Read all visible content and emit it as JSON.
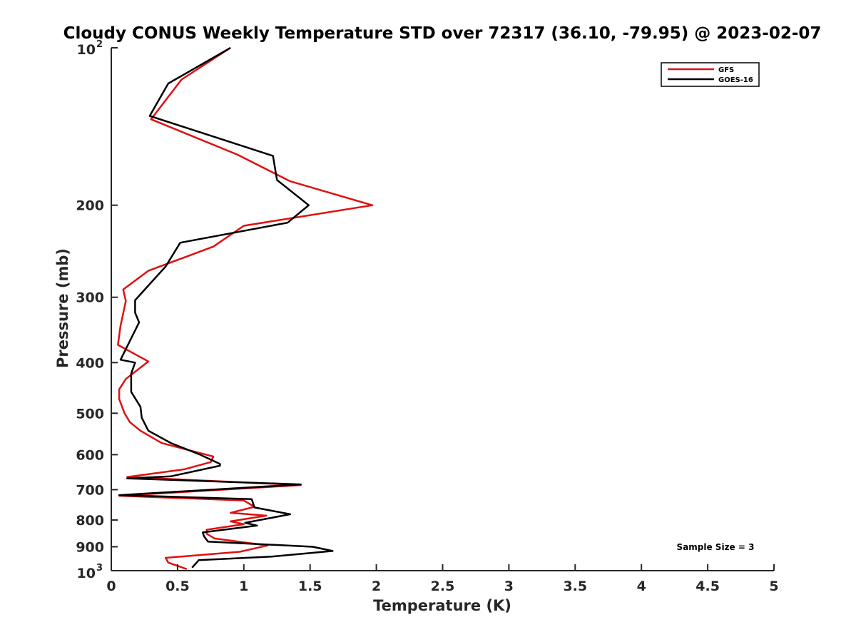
{
  "chart_data": {
    "type": "line",
    "title": "Cloudy CONUS Weekly Temperature STD over 72317 (36.10, -79.95) @ 2023-02-07",
    "xlabel": "Temperature (K)",
    "ylabel": "Pressure (mb)",
    "xlim": [
      0,
      5
    ],
    "ylim": [
      1000,
      100
    ],
    "y_scale": "log",
    "y_reversed": true,
    "grid": false,
    "legend_position": "top-right",
    "x_ticks": [
      "0",
      "0.5",
      "1",
      "1.5",
      "2",
      "2.5",
      "3",
      "3.5",
      "4",
      "4.5",
      "5"
    ],
    "y_ticks": [
      {
        "value": 100,
        "base": "10",
        "exp": "2"
      },
      {
        "value": 200,
        "label": "200"
      },
      {
        "value": 300,
        "label": "300"
      },
      {
        "value": 400,
        "label": "400"
      },
      {
        "value": 500,
        "label": "500"
      },
      {
        "value": 600,
        "label": "600"
      },
      {
        "value": 700,
        "label": "700"
      },
      {
        "value": 800,
        "label": "800"
      },
      {
        "value": 900,
        "label": "900"
      },
      {
        "value": 1000,
        "base": "10",
        "exp": "3"
      }
    ],
    "annotation": "Sample Size = 3",
    "series": [
      {
        "name": "GFS",
        "color": "#e01010",
        "points": [
          [
            0.9,
            100
          ],
          [
            0.53,
            115
          ],
          [
            0.3,
            137
          ],
          [
            0.95,
            160
          ],
          [
            1.35,
            180
          ],
          [
            1.97,
            200
          ],
          [
            1.0,
            219
          ],
          [
            0.77,
            240
          ],
          [
            0.28,
            267
          ],
          [
            0.09,
            290
          ],
          [
            0.11,
            305
          ],
          [
            0.07,
            340
          ],
          [
            0.05,
            370
          ],
          [
            0.28,
            398
          ],
          [
            0.11,
            430
          ],
          [
            0.06,
            450
          ],
          [
            0.06,
            470
          ],
          [
            0.1,
            500
          ],
          [
            0.14,
            520
          ],
          [
            0.22,
            540
          ],
          [
            0.38,
            570
          ],
          [
            0.77,
            605
          ],
          [
            0.75,
            620
          ],
          [
            0.55,
            640
          ],
          [
            0.12,
            662
          ],
          [
            1.43,
            686
          ],
          [
            0.06,
            719
          ],
          [
            1.0,
            734
          ],
          [
            1.08,
            755
          ],
          [
            0.9,
            775
          ],
          [
            1.17,
            785
          ],
          [
            0.9,
            805
          ],
          [
            1.0,
            815
          ],
          [
            0.72,
            835
          ],
          [
            0.72,
            850
          ],
          [
            0.78,
            868
          ],
          [
            1.18,
            895
          ],
          [
            0.97,
            920
          ],
          [
            0.41,
            945
          ],
          [
            0.43,
            965
          ],
          [
            0.57,
            993
          ]
        ]
      },
      {
        "name": "GOES-16",
        "color": "#000000",
        "points": [
          [
            0.9,
            100
          ],
          [
            0.43,
            117
          ],
          [
            0.29,
            135
          ],
          [
            1.22,
            161
          ],
          [
            1.25,
            179
          ],
          [
            1.49,
            200
          ],
          [
            1.33,
            216
          ],
          [
            0.52,
            236
          ],
          [
            0.41,
            262
          ],
          [
            0.18,
            304
          ],
          [
            0.18,
            321
          ],
          [
            0.21,
            335
          ],
          [
            0.07,
            395
          ],
          [
            0.18,
            400
          ],
          [
            0.15,
            420
          ],
          [
            0.15,
            455
          ],
          [
            0.22,
            486
          ],
          [
            0.23,
            510
          ],
          [
            0.28,
            540
          ],
          [
            0.45,
            570
          ],
          [
            0.67,
            600
          ],
          [
            0.82,
            625
          ],
          [
            0.82,
            630
          ],
          [
            0.45,
            660
          ],
          [
            0.12,
            666
          ],
          [
            1.43,
            684
          ],
          [
            0.06,
            717
          ],
          [
            1.06,
            730
          ],
          [
            1.08,
            757
          ],
          [
            1.35,
            780
          ],
          [
            1.01,
            810
          ],
          [
            1.1,
            820
          ],
          [
            0.69,
            845
          ],
          [
            0.7,
            860
          ],
          [
            0.73,
            880
          ],
          [
            1.52,
            900
          ],
          [
            1.67,
            917
          ],
          [
            1.21,
            940
          ],
          [
            0.66,
            955
          ],
          [
            0.61,
            987
          ]
        ]
      }
    ]
  }
}
